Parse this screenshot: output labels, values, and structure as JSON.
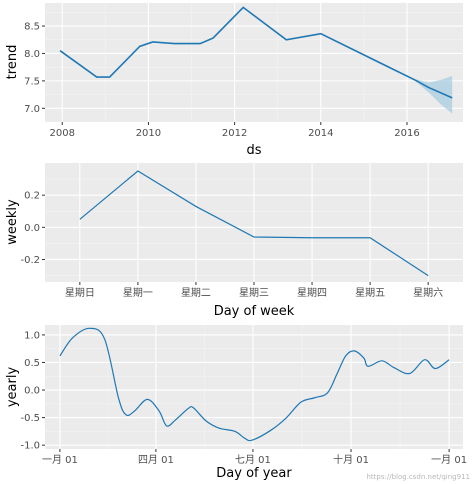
{
  "colors": {
    "panel": "#ebebeb",
    "grid_major": "#ffffff",
    "grid_minor": "#f4f4f4",
    "line": "#1f78b4",
    "band": "#9ecae1"
  },
  "watermark": "https://blog.csdn.net/qing911",
  "chart_data": [
    {
      "type": "line",
      "xlabel": "ds",
      "ylabel": "trend",
      "xlim": [
        2007.6,
        2017.3
      ],
      "ylim": [
        6.75,
        8.92
      ],
      "xticks": [
        2008,
        2010,
        2012,
        2014,
        2016
      ],
      "xtick_labels": [
        "2008",
        "2010",
        "2012",
        "2014",
        "2016"
      ],
      "yticks": [
        7.0,
        7.5,
        8.0,
        8.5
      ],
      "ytick_labels": [
        "7.0",
        "7.5",
        "8.0",
        "8.5"
      ],
      "grid": true,
      "x": [
        2007.95,
        2008.8,
        2009.1,
        2009.8,
        2010.1,
        2010.6,
        2011.2,
        2011.5,
        2012.2,
        2013.2,
        2014.0,
        2016.2,
        2016.5,
        2017.05
      ],
      "y": [
        8.05,
        7.57,
        7.57,
        8.13,
        8.21,
        8.18,
        8.18,
        8.28,
        8.84,
        8.25,
        8.36,
        7.51,
        7.38,
        7.19
      ],
      "uncertainty": {
        "x": [
          2016.2,
          2016.5,
          2016.8,
          2017.05
        ],
        "upper": [
          7.53,
          7.47,
          7.52,
          7.59
        ],
        "lower": [
          7.49,
          7.29,
          7.06,
          6.9
        ]
      }
    },
    {
      "type": "line",
      "xlabel": "Day of week",
      "ylabel": "weekly",
      "categories": [
        "星期日",
        "星期一",
        "星期二",
        "星期三",
        "星期四",
        "星期五",
        "星期六"
      ],
      "values": [
        0.05,
        0.35,
        0.13,
        -0.06,
        -0.065,
        -0.065,
        -0.3
      ],
      "yticks": [
        -0.2,
        0.0,
        0.2
      ],
      "ytick_labels": [
        "-0.2",
        "0.0",
        "0.2"
      ],
      "ylim": [
        -0.34,
        0.4
      ],
      "grid": true
    },
    {
      "type": "line",
      "xlabel": "Day of year",
      "ylabel": "yearly",
      "xlim": [
        -14,
        378
      ],
      "ylim": [
        -1.07,
        1.18
      ],
      "xticks": [
        0,
        90,
        181,
        273,
        365
      ],
      "xtick_labels": [
        "一月 01",
        "四月 01",
        "七月 01",
        "十月 01",
        "一月 01"
      ],
      "yticks": [
        -1.0,
        -0.5,
        0.0,
        0.5,
        1.0
      ],
      "ytick_labels": [
        "-1.0",
        "-0.5",
        "0.0",
        "0.5",
        "1.0"
      ],
      "grid": true,
      "x": [
        0,
        12,
        28,
        42,
        55,
        62,
        70,
        82,
        93,
        100,
        108,
        120,
        125,
        137,
        149,
        164,
        173,
        180,
        197,
        212,
        226,
        239,
        251,
        260,
        268,
        276,
        285,
        289,
        302,
        313,
        328,
        342,
        352,
        365
      ],
      "y": [
        0.62,
        0.95,
        1.12,
        0.92,
        -0.15,
        -0.45,
        -0.38,
        -0.17,
        -0.38,
        -0.65,
        -0.55,
        -0.34,
        -0.32,
        -0.56,
        -0.69,
        -0.75,
        -0.87,
        -0.91,
        -0.74,
        -0.51,
        -0.22,
        -0.14,
        -0.05,
        0.3,
        0.62,
        0.71,
        0.58,
        0.43,
        0.53,
        0.41,
        0.3,
        0.55,
        0.39,
        0.55
      ]
    }
  ]
}
